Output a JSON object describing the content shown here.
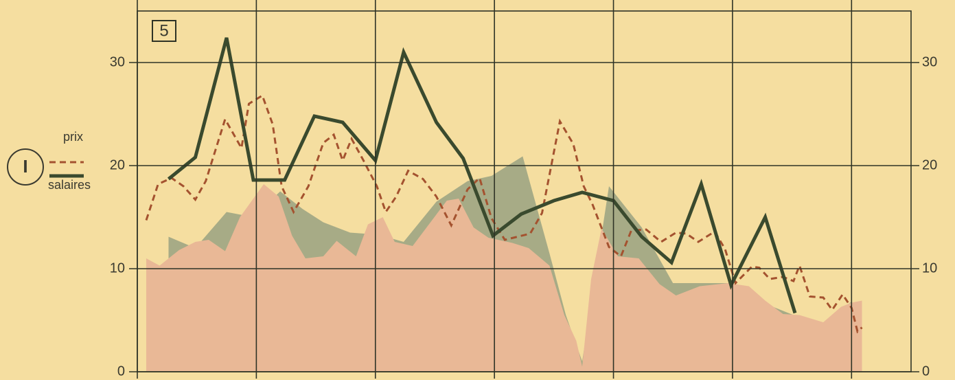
{
  "chart_data": {
    "type": "line",
    "panel_label": "5",
    "legend_label": "I",
    "xlim": [
      0,
      52
    ],
    "xticks": [
      0,
      8,
      16,
      24,
      32,
      40,
      48
    ],
    "ylim": [
      0,
      35
    ],
    "yticks": [
      0,
      10,
      20,
      30
    ],
    "grid": true,
    "legend": "left",
    "series": [
      {
        "style": "area",
        "color": "#a7ab86",
        "x": [
          2.1,
          3.9,
          6.0,
          7.8,
          9.6,
          11.1,
          12.5,
          14.3,
          16.2,
          17.9,
          20.1,
          22.2,
          23.8,
          25.9,
          27.7,
          28.8,
          29.9,
          31.7,
          33.9,
          36.0,
          37.8,
          39.9,
          42.2,
          44.1,
          46.1,
          48.0
        ],
        "values": [
          13.1,
          12.0,
          15.5,
          15.0,
          17.5,
          15.8,
          14.5,
          13.5,
          13.3,
          12.6,
          16.5,
          18.5,
          19.0,
          20.9,
          11.5,
          5.5,
          1.0,
          18.0,
          14.0,
          8.6,
          8.6,
          8.6,
          6.6,
          5.5,
          4.7,
          6.8
        ]
      },
      {
        "style": "area",
        "color": "#e9b896",
        "x": [
          0.6,
          1.5,
          2.8,
          3.9,
          4.8,
          5.9,
          6.9,
          8.5,
          9.5,
          10.4,
          11.3,
          12.5,
          13.4,
          14.7,
          15.5,
          16.5,
          17.3,
          18.5,
          19.7,
          20.8,
          21.6,
          22.6,
          23.6,
          25.2,
          26.3,
          27.7,
          28.7,
          29.5,
          29.9,
          30.5,
          31.2,
          32.3,
          33.7,
          35.1,
          36.2,
          37.8,
          39.7,
          41.1,
          42.2,
          43.4,
          44.5,
          46.1,
          47.3,
          48.0,
          48.7
        ],
        "values": [
          11.0,
          10.3,
          11.8,
          12.6,
          12.8,
          11.7,
          15.0,
          18.2,
          17.0,
          13.2,
          11.0,
          11.2,
          12.7,
          11.2,
          14.3,
          15.0,
          12.6,
          12.2,
          14.5,
          16.6,
          16.8,
          14.0,
          13.0,
          12.5,
          12.0,
          10.3,
          5.5,
          3.0,
          0.5,
          9.0,
          13.9,
          11.2,
          11.0,
          8.5,
          7.4,
          8.3,
          8.6,
          8.3,
          6.9,
          5.6,
          5.5,
          4.8,
          6.3,
          6.7,
          6.9
        ]
      },
      {
        "name": "prix",
        "style": "dashed",
        "color": "#a4522f",
        "x": [
          0.6,
          1.4,
          2.3,
          3.1,
          3.9,
          4.6,
          5.9,
          7.0,
          7.5,
          8.4,
          9.1,
          9.7,
          10.5,
          11.5,
          12.5,
          13.2,
          13.8,
          14.4,
          15.2,
          16.1,
          16.7,
          17.4,
          18.2,
          19.2,
          20.1,
          21.1,
          22.2,
          23.0,
          23.8,
          24.7,
          26.4,
          27.2,
          28.4,
          29.3,
          30.0,
          30.6,
          31.7,
          32.5,
          33.2,
          34.2,
          35.2,
          36.2,
          36.9,
          37.7,
          38.8,
          39.5,
          40.2,
          41.3,
          41.8,
          42.5,
          43.4,
          44.1,
          44.5,
          45.2,
          46.1,
          46.7,
          47.4,
          48.0,
          48.4,
          48.7
        ],
        "values": [
          14.7,
          18.2,
          18.8,
          18.0,
          16.7,
          18.5,
          24.5,
          21.7,
          26.0,
          26.8,
          24.0,
          18.0,
          15.5,
          18.0,
          22.2,
          23.0,
          20.5,
          22.6,
          20.5,
          18.0,
          15.5,
          17.0,
          19.5,
          18.7,
          17.0,
          14.2,
          17.7,
          18.8,
          14.9,
          12.8,
          13.4,
          15.4,
          24.3,
          22.1,
          18.0,
          16.2,
          12.1,
          11.2,
          13.7,
          13.8,
          12.6,
          13.5,
          13.4,
          12.6,
          13.6,
          11.9,
          8.6,
          10.2,
          10.1,
          9.0,
          9.2,
          8.8,
          10.3,
          7.3,
          7.2,
          6.0,
          7.5,
          6.2,
          3.9,
          4.3
        ]
      },
      {
        "name": "salaires",
        "style": "solid",
        "color": "#3a4a2e",
        "x": [
          2.1,
          3.9,
          6.0,
          7.8,
          9.9,
          11.9,
          13.8,
          16.0,
          17.9,
          20.1,
          21.9,
          23.9,
          25.8,
          28.0,
          29.9,
          32.0,
          33.9,
          35.9,
          37.9,
          39.9,
          42.2,
          44.2
        ],
        "values": [
          18.7,
          20.8,
          32.4,
          18.6,
          18.6,
          24.8,
          24.2,
          20.5,
          31.0,
          24.2,
          20.7,
          13.2,
          15.3,
          16.6,
          17.4,
          16.6,
          13.1,
          10.6,
          18.2,
          8.4,
          15.0,
          5.7
        ]
      }
    ]
  }
}
